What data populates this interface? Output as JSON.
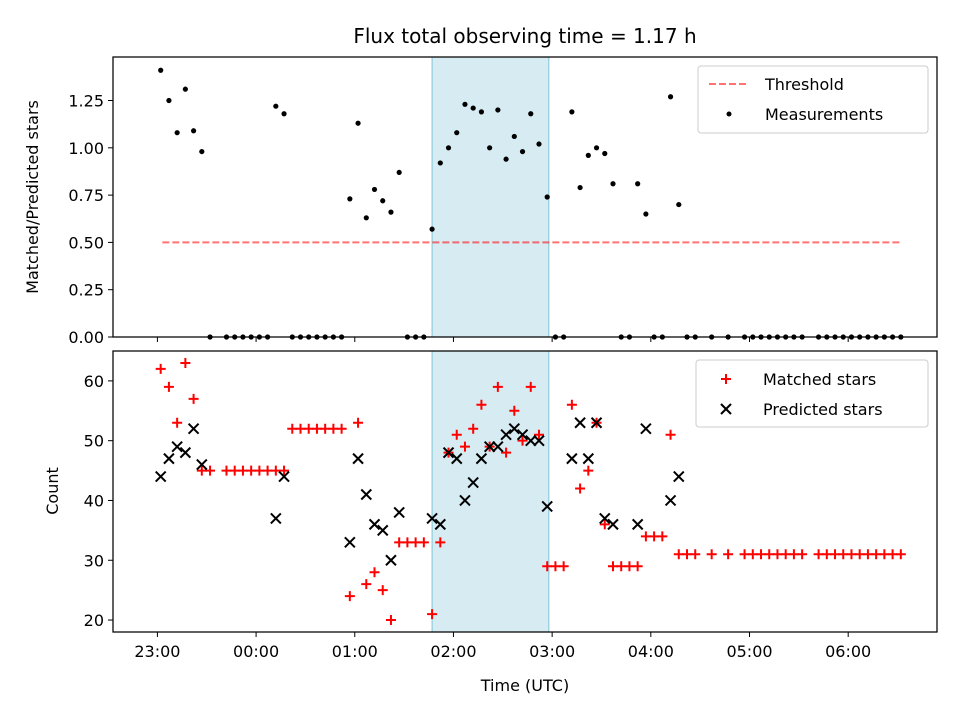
{
  "title": "Flux total observing time = 1.17 h",
  "chart_data": [
    {
      "type": "scatter",
      "title": "Flux total observing time = 1.17 h",
      "xlabel": "",
      "ylabel": "Matched/Predicted stars",
      "xlim": [
        "22:33",
        "06:54"
      ],
      "ylim": [
        0,
        1.48
      ],
      "yticks": [
        "0.00",
        "0.25",
        "0.50",
        "0.75",
        "1.00",
        "1.25"
      ],
      "highlight_span": {
        "start": "01:47",
        "end": "02:58",
        "color": "#add8e6"
      },
      "threshold": {
        "name": "Threshold",
        "value": 0.5,
        "x_start": "23:03",
        "x_end": "06:32",
        "color": "#ff0000",
        "style": "dashed"
      },
      "legend": {
        "position": "top-right",
        "entries": [
          "Threshold",
          "Measurements"
        ]
      },
      "series": [
        {
          "name": "Measurements",
          "color": "#000000",
          "marker": "dot",
          "points": [
            [
              "23:02",
              1.41
            ],
            [
              "23:07",
              1.25
            ],
            [
              "23:12",
              1.08
            ],
            [
              "23:17",
              1.31
            ],
            [
              "23:22",
              1.09
            ],
            [
              "23:27",
              0.98
            ],
            [
              "23:32",
              0
            ],
            [
              "23:42",
              0
            ],
            [
              "23:47",
              0
            ],
            [
              "23:52",
              0
            ],
            [
              "23:57",
              0
            ],
            [
              "00:02",
              0
            ],
            [
              "00:07",
              0
            ],
            [
              "00:12",
              1.22
            ],
            [
              "00:17",
              1.18
            ],
            [
              "00:22",
              0
            ],
            [
              "00:27",
              0
            ],
            [
              "00:32",
              0
            ],
            [
              "00:37",
              0
            ],
            [
              "00:42",
              0
            ],
            [
              "00:47",
              0
            ],
            [
              "00:52",
              0
            ],
            [
              "00:57",
              0.73
            ],
            [
              "01:02",
              1.13
            ],
            [
              "01:07",
              0.63
            ],
            [
              "01:12",
              0.78
            ],
            [
              "01:17",
              0.72
            ],
            [
              "01:22",
              0.66
            ],
            [
              "01:27",
              0.87
            ],
            [
              "01:32",
              0
            ],
            [
              "01:37",
              0
            ],
            [
              "01:42",
              0
            ],
            [
              "01:47",
              0.57
            ],
            [
              "01:52",
              0.92
            ],
            [
              "01:57",
              1.0
            ],
            [
              "02:02",
              1.08
            ],
            [
              "02:07",
              1.23
            ],
            [
              "02:12",
              1.21
            ],
            [
              "02:17",
              1.19
            ],
            [
              "02:22",
              1.0
            ],
            [
              "02:27",
              1.2
            ],
            [
              "02:32",
              0.94
            ],
            [
              "02:37",
              1.06
            ],
            [
              "02:42",
              0.98
            ],
            [
              "02:47",
              1.18
            ],
            [
              "02:52",
              1.02
            ],
            [
              "02:57",
              0.74
            ],
            [
              "03:02",
              0
            ],
            [
              "03:07",
              0
            ],
            [
              "03:12",
              1.19
            ],
            [
              "03:17",
              0.79
            ],
            [
              "03:22",
              0.96
            ],
            [
              "03:27",
              1.0
            ],
            [
              "03:32",
              0.97
            ],
            [
              "03:37",
              0.81
            ],
            [
              "03:42",
              0
            ],
            [
              "03:47",
              0
            ],
            [
              "03:52",
              0.81
            ],
            [
              "03:57",
              0.65
            ],
            [
              "04:02",
              0
            ],
            [
              "04:07",
              0
            ],
            [
              "04:12",
              1.27
            ],
            [
              "04:17",
              0.7
            ],
            [
              "04:22",
              0
            ],
            [
              "04:27",
              0
            ],
            [
              "04:37",
              0
            ],
            [
              "04:47",
              0
            ],
            [
              "04:57",
              0
            ],
            [
              "05:02",
              0
            ],
            [
              "05:07",
              0
            ],
            [
              "05:12",
              0
            ],
            [
              "05:17",
              0
            ],
            [
              "05:22",
              0
            ],
            [
              "05:27",
              0
            ],
            [
              "05:32",
              0
            ],
            [
              "05:42",
              0
            ],
            [
              "05:47",
              0
            ],
            [
              "05:52",
              0
            ],
            [
              "05:57",
              0
            ],
            [
              "06:02",
              0
            ],
            [
              "06:07",
              0
            ],
            [
              "06:12",
              0
            ],
            [
              "06:17",
              0
            ],
            [
              "06:22",
              0
            ],
            [
              "06:27",
              0
            ],
            [
              "06:32",
              0
            ]
          ]
        }
      ]
    },
    {
      "type": "scatter",
      "title": "",
      "xlabel": "Time (UTC)",
      "ylabel": "Count",
      "xlim": [
        "22:33",
        "06:54"
      ],
      "ylim": [
        18,
        65
      ],
      "yticks": [
        "20",
        "30",
        "40",
        "50",
        "60"
      ],
      "xticks": [
        "23:00",
        "00:00",
        "01:00",
        "02:00",
        "03:00",
        "04:00",
        "05:00",
        "06:00"
      ],
      "highlight_span": {
        "start": "01:47",
        "end": "02:58",
        "color": "#add8e6"
      },
      "legend": {
        "position": "top-right",
        "entries": [
          "Matched stars",
          "Predicted stars"
        ]
      },
      "series": [
        {
          "name": "Matched stars",
          "color": "#ff0000",
          "marker": "plus",
          "points": [
            [
              "23:02",
              62
            ],
            [
              "23:07",
              59
            ],
            [
              "23:12",
              53
            ],
            [
              "23:17",
              63
            ],
            [
              "23:22",
              57
            ],
            [
              "23:27",
              45
            ],
            [
              "23:32",
              45
            ],
            [
              "23:42",
              45
            ],
            [
              "23:47",
              45
            ],
            [
              "23:52",
              45
            ],
            [
              "23:57",
              45
            ],
            [
              "00:02",
              45
            ],
            [
              "00:07",
              45
            ],
            [
              "00:12",
              45
            ],
            [
              "00:17",
              45
            ],
            [
              "00:22",
              52
            ],
            [
              "00:27",
              52
            ],
            [
              "00:32",
              52
            ],
            [
              "00:37",
              52
            ],
            [
              "00:42",
              52
            ],
            [
              "00:47",
              52
            ],
            [
              "00:52",
              52
            ],
            [
              "00:57",
              24
            ],
            [
              "01:02",
              53
            ],
            [
              "01:07",
              26
            ],
            [
              "01:12",
              28
            ],
            [
              "01:17",
              25
            ],
            [
              "01:22",
              20
            ],
            [
              "01:27",
              33
            ],
            [
              "01:32",
              33
            ],
            [
              "01:37",
              33
            ],
            [
              "01:42",
              33
            ],
            [
              "01:47",
              21
            ],
            [
              "01:52",
              33
            ],
            [
              "01:57",
              48
            ],
            [
              "02:02",
              51
            ],
            [
              "02:07",
              49
            ],
            [
              "02:12",
              52
            ],
            [
              "02:17",
              56
            ],
            [
              "02:22",
              49
            ],
            [
              "02:27",
              59
            ],
            [
              "02:32",
              48
            ],
            [
              "02:37",
              55
            ],
            [
              "02:42",
              50
            ],
            [
              "02:47",
              59
            ],
            [
              "02:52",
              51
            ],
            [
              "02:57",
              29
            ],
            [
              "03:02",
              29
            ],
            [
              "03:07",
              29
            ],
            [
              "03:12",
              56
            ],
            [
              "03:17",
              42
            ],
            [
              "03:22",
              45
            ],
            [
              "03:27",
              53
            ],
            [
              "03:32",
              36
            ],
            [
              "03:37",
              29
            ],
            [
              "03:42",
              29
            ],
            [
              "03:47",
              29
            ],
            [
              "03:52",
              29
            ],
            [
              "03:57",
              34
            ],
            [
              "04:02",
              34
            ],
            [
              "04:07",
              34
            ],
            [
              "04:12",
              51
            ],
            [
              "04:17",
              31
            ],
            [
              "04:22",
              31
            ],
            [
              "04:27",
              31
            ],
            [
              "04:37",
              31
            ],
            [
              "04:47",
              31
            ],
            [
              "04:57",
              31
            ],
            [
              "05:02",
              31
            ],
            [
              "05:07",
              31
            ],
            [
              "05:12",
              31
            ],
            [
              "05:17",
              31
            ],
            [
              "05:22",
              31
            ],
            [
              "05:27",
              31
            ],
            [
              "05:32",
              31
            ],
            [
              "05:42",
              31
            ],
            [
              "05:47",
              31
            ],
            [
              "05:52",
              31
            ],
            [
              "05:57",
              31
            ],
            [
              "06:02",
              31
            ],
            [
              "06:07",
              31
            ],
            [
              "06:12",
              31
            ],
            [
              "06:17",
              31
            ],
            [
              "06:22",
              31
            ],
            [
              "06:27",
              31
            ],
            [
              "06:32",
              31
            ]
          ]
        },
        {
          "name": "Predicted stars",
          "color": "#000000",
          "marker": "x",
          "points": [
            [
              "23:02",
              44
            ],
            [
              "23:07",
              47
            ],
            [
              "23:12",
              49
            ],
            [
              "23:17",
              48
            ],
            [
              "23:22",
              52
            ],
            [
              "23:27",
              46
            ],
            [
              "00:12",
              37
            ],
            [
              "00:17",
              44
            ],
            [
              "00:57",
              33
            ],
            [
              "01:02",
              47
            ],
            [
              "01:07",
              41
            ],
            [
              "01:12",
              36
            ],
            [
              "01:17",
              35
            ],
            [
              "01:22",
              30
            ],
            [
              "01:27",
              38
            ],
            [
              "01:47",
              37
            ],
            [
              "01:52",
              36
            ],
            [
              "01:57",
              48
            ],
            [
              "02:02",
              47
            ],
            [
              "02:07",
              40
            ],
            [
              "02:12",
              43
            ],
            [
              "02:17",
              47
            ],
            [
              "02:22",
              49
            ],
            [
              "02:27",
              49
            ],
            [
              "02:32",
              51
            ],
            [
              "02:37",
              52
            ],
            [
              "02:42",
              51
            ],
            [
              "02:47",
              50
            ],
            [
              "02:52",
              50
            ],
            [
              "02:57",
              39
            ],
            [
              "03:12",
              47
            ],
            [
              "03:17",
              53
            ],
            [
              "03:22",
              47
            ],
            [
              "03:27",
              53
            ],
            [
              "03:32",
              37
            ],
            [
              "03:37",
              36
            ],
            [
              "03:52",
              36
            ],
            [
              "03:57",
              52
            ],
            [
              "04:12",
              40
            ],
            [
              "04:17",
              44
            ]
          ]
        }
      ]
    }
  ]
}
